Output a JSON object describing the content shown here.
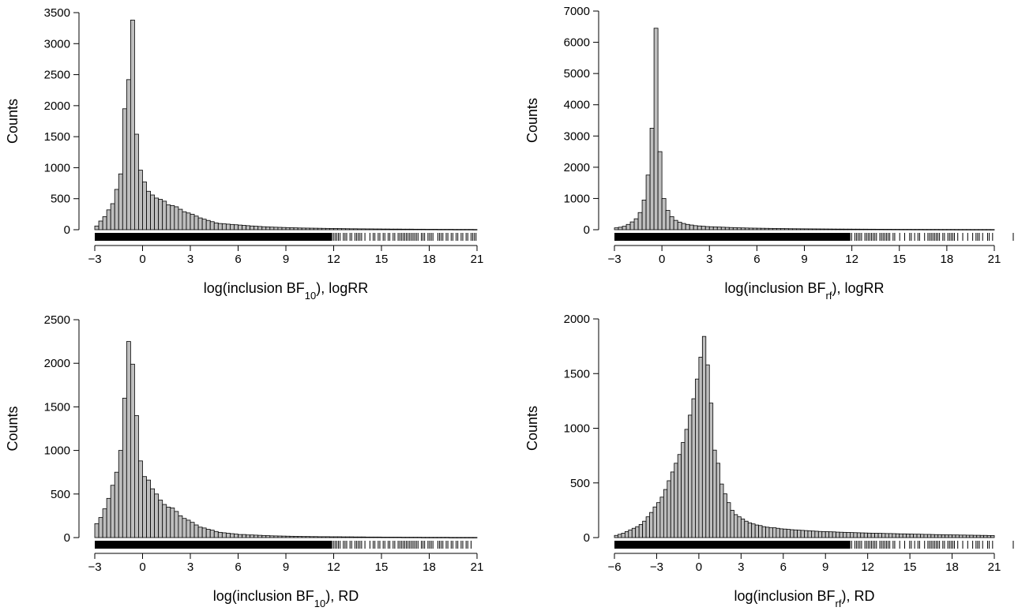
{
  "chart_data": [
    {
      "type": "bar",
      "ylabel": "Counts",
      "xlabel_parts": [
        "log(inclusion BF",
        "10",
        "), logRR"
      ],
      "xlim": [
        -3,
        21
      ],
      "ylim": [
        0,
        3500
      ],
      "xticks": [
        -3,
        0,
        3,
        6,
        9,
        12,
        15,
        18,
        21
      ],
      "yticks": [
        0,
        500,
        1000,
        1500,
        2000,
        2500,
        3000,
        3500
      ],
      "bin_start": -3,
      "bin_width": 0.25,
      "bar_fill": "#bebebe",
      "values": [
        60,
        140,
        210,
        320,
        420,
        650,
        900,
        1950,
        2420,
        3380,
        1540,
        960,
        770,
        620,
        560,
        510,
        490,
        460,
        400,
        390,
        370,
        330,
        290,
        270,
        250,
        220,
        190,
        170,
        150,
        130,
        110,
        100,
        95,
        90,
        85,
        80,
        75,
        70,
        65,
        60,
        56,
        52,
        48,
        45,
        42,
        40,
        38,
        36,
        34,
        32,
        30,
        28,
        27,
        26,
        25,
        24,
        23,
        22,
        21,
        20,
        19,
        18,
        17,
        16,
        15,
        15,
        14,
        14,
        13,
        13,
        12,
        12,
        11,
        11,
        10,
        10,
        10,
        9,
        9,
        9,
        8,
        8,
        8,
        7,
        7,
        7,
        6,
        6,
        6,
        6,
        5,
        5,
        5,
        5,
        5,
        4
      ]
    },
    {
      "type": "bar",
      "ylabel": "Counts",
      "xlabel_parts": [
        "log(inclusion BF",
        "rf",
        "), logRR"
      ],
      "xlim": [
        -3,
        21
      ],
      "ylim": [
        0,
        7000
      ],
      "xticks": [
        -3,
        0,
        3,
        6,
        9,
        12,
        15,
        18,
        21
      ],
      "yticks": [
        0,
        1000,
        2000,
        3000,
        4000,
        5000,
        6000,
        7000
      ],
      "bin_start": -3,
      "bin_width": 0.25,
      "bar_fill": "#bebebe",
      "values": [
        60,
        80,
        110,
        170,
        250,
        350,
        550,
        950,
        1750,
        3250,
        6450,
        2500,
        1000,
        620,
        420,
        300,
        240,
        200,
        170,
        150,
        130,
        120,
        110,
        100,
        95,
        90,
        85,
        80,
        75,
        70,
        65,
        60,
        58,
        55,
        52,
        50,
        48,
        46,
        44,
        42,
        40,
        38,
        36,
        34,
        32,
        31,
        30,
        29,
        28,
        27,
        26,
        25,
        24,
        23,
        22,
        21,
        20,
        20,
        19,
        19,
        18,
        18,
        17,
        17,
        16,
        16,
        15,
        15,
        14,
        14,
        13,
        13,
        12,
        12,
        12,
        11,
        11,
        11,
        10,
        10,
        10,
        10,
        9,
        9,
        9,
        9,
        8,
        8,
        8,
        8,
        7,
        7,
        7,
        7,
        7,
        6
      ]
    },
    {
      "type": "bar",
      "ylabel": "Counts",
      "xlabel_parts": [
        "log(inclusion BF",
        "10",
        "), RD"
      ],
      "xlim": [
        -3,
        21
      ],
      "ylim": [
        0,
        2500
      ],
      "xticks": [
        -3,
        0,
        3,
        6,
        9,
        12,
        15,
        18,
        21
      ],
      "yticks": [
        0,
        500,
        1000,
        1500,
        2000,
        2500
      ],
      "bin_start": -3,
      "bin_width": 0.25,
      "bar_fill": "#bebebe",
      "values": [
        160,
        230,
        330,
        450,
        600,
        750,
        1000,
        1600,
        2250,
        1990,
        1400,
        880,
        700,
        660,
        560,
        500,
        430,
        380,
        350,
        340,
        300,
        250,
        220,
        200,
        175,
        145,
        120,
        110,
        95,
        85,
        70,
        60,
        55,
        50,
        45,
        40,
        35,
        35,
        30,
        30,
        28,
        26,
        24,
        22,
        20,
        19,
        18,
        17,
        16,
        15,
        14,
        13,
        12,
        12,
        11,
        11,
        10,
        10,
        10,
        9,
        9,
        9,
        8,
        8,
        8,
        7,
        7,
        7,
        6,
        6,
        6,
        6,
        5,
        5,
        5,
        5,
        5,
        4,
        4,
        4,
        4,
        4,
        3,
        3,
        3,
        3,
        3,
        3,
        3,
        2,
        2,
        2,
        2,
        2,
        2,
        2
      ]
    },
    {
      "type": "bar",
      "ylabel": "Counts",
      "xlabel_parts": [
        "log(inclusion BF",
        "rf",
        "), RD"
      ],
      "xlim": [
        -6,
        21
      ],
      "ylim": [
        0,
        2000
      ],
      "xticks": [
        -6,
        -3,
        0,
        3,
        6,
        9,
        12,
        15,
        18,
        21
      ],
      "yticks": [
        0,
        500,
        1000,
        1500,
        2000
      ],
      "bin_start": -6,
      "bin_width": 0.25,
      "bar_fill": "#bebebe",
      "values": [
        20,
        30,
        40,
        55,
        70,
        85,
        100,
        120,
        150,
        190,
        230,
        280,
        320,
        370,
        440,
        520,
        600,
        680,
        760,
        870,
        990,
        1120,
        1270,
        1450,
        1650,
        1840,
        1580,
        1230,
        800,
        680,
        490,
        400,
        320,
        250,
        210,
        190,
        170,
        150,
        135,
        125,
        115,
        110,
        100,
        95,
        90,
        90,
        85,
        80,
        78,
        75,
        72,
        70,
        68,
        66,
        64,
        62,
        60,
        58,
        56,
        55,
        54,
        53,
        52,
        50,
        49,
        48,
        47,
        46,
        45,
        44,
        43,
        42,
        41,
        40,
        40,
        39,
        38,
        37,
        37,
        36,
        35,
        34,
        34,
        33,
        32,
        31,
        31,
        30,
        29,
        29,
        28,
        27,
        27,
        26,
        25,
        25,
        24,
        24,
        23,
        23,
        22,
        22,
        21,
        21,
        20,
        20,
        19,
        19
      ]
    }
  ]
}
